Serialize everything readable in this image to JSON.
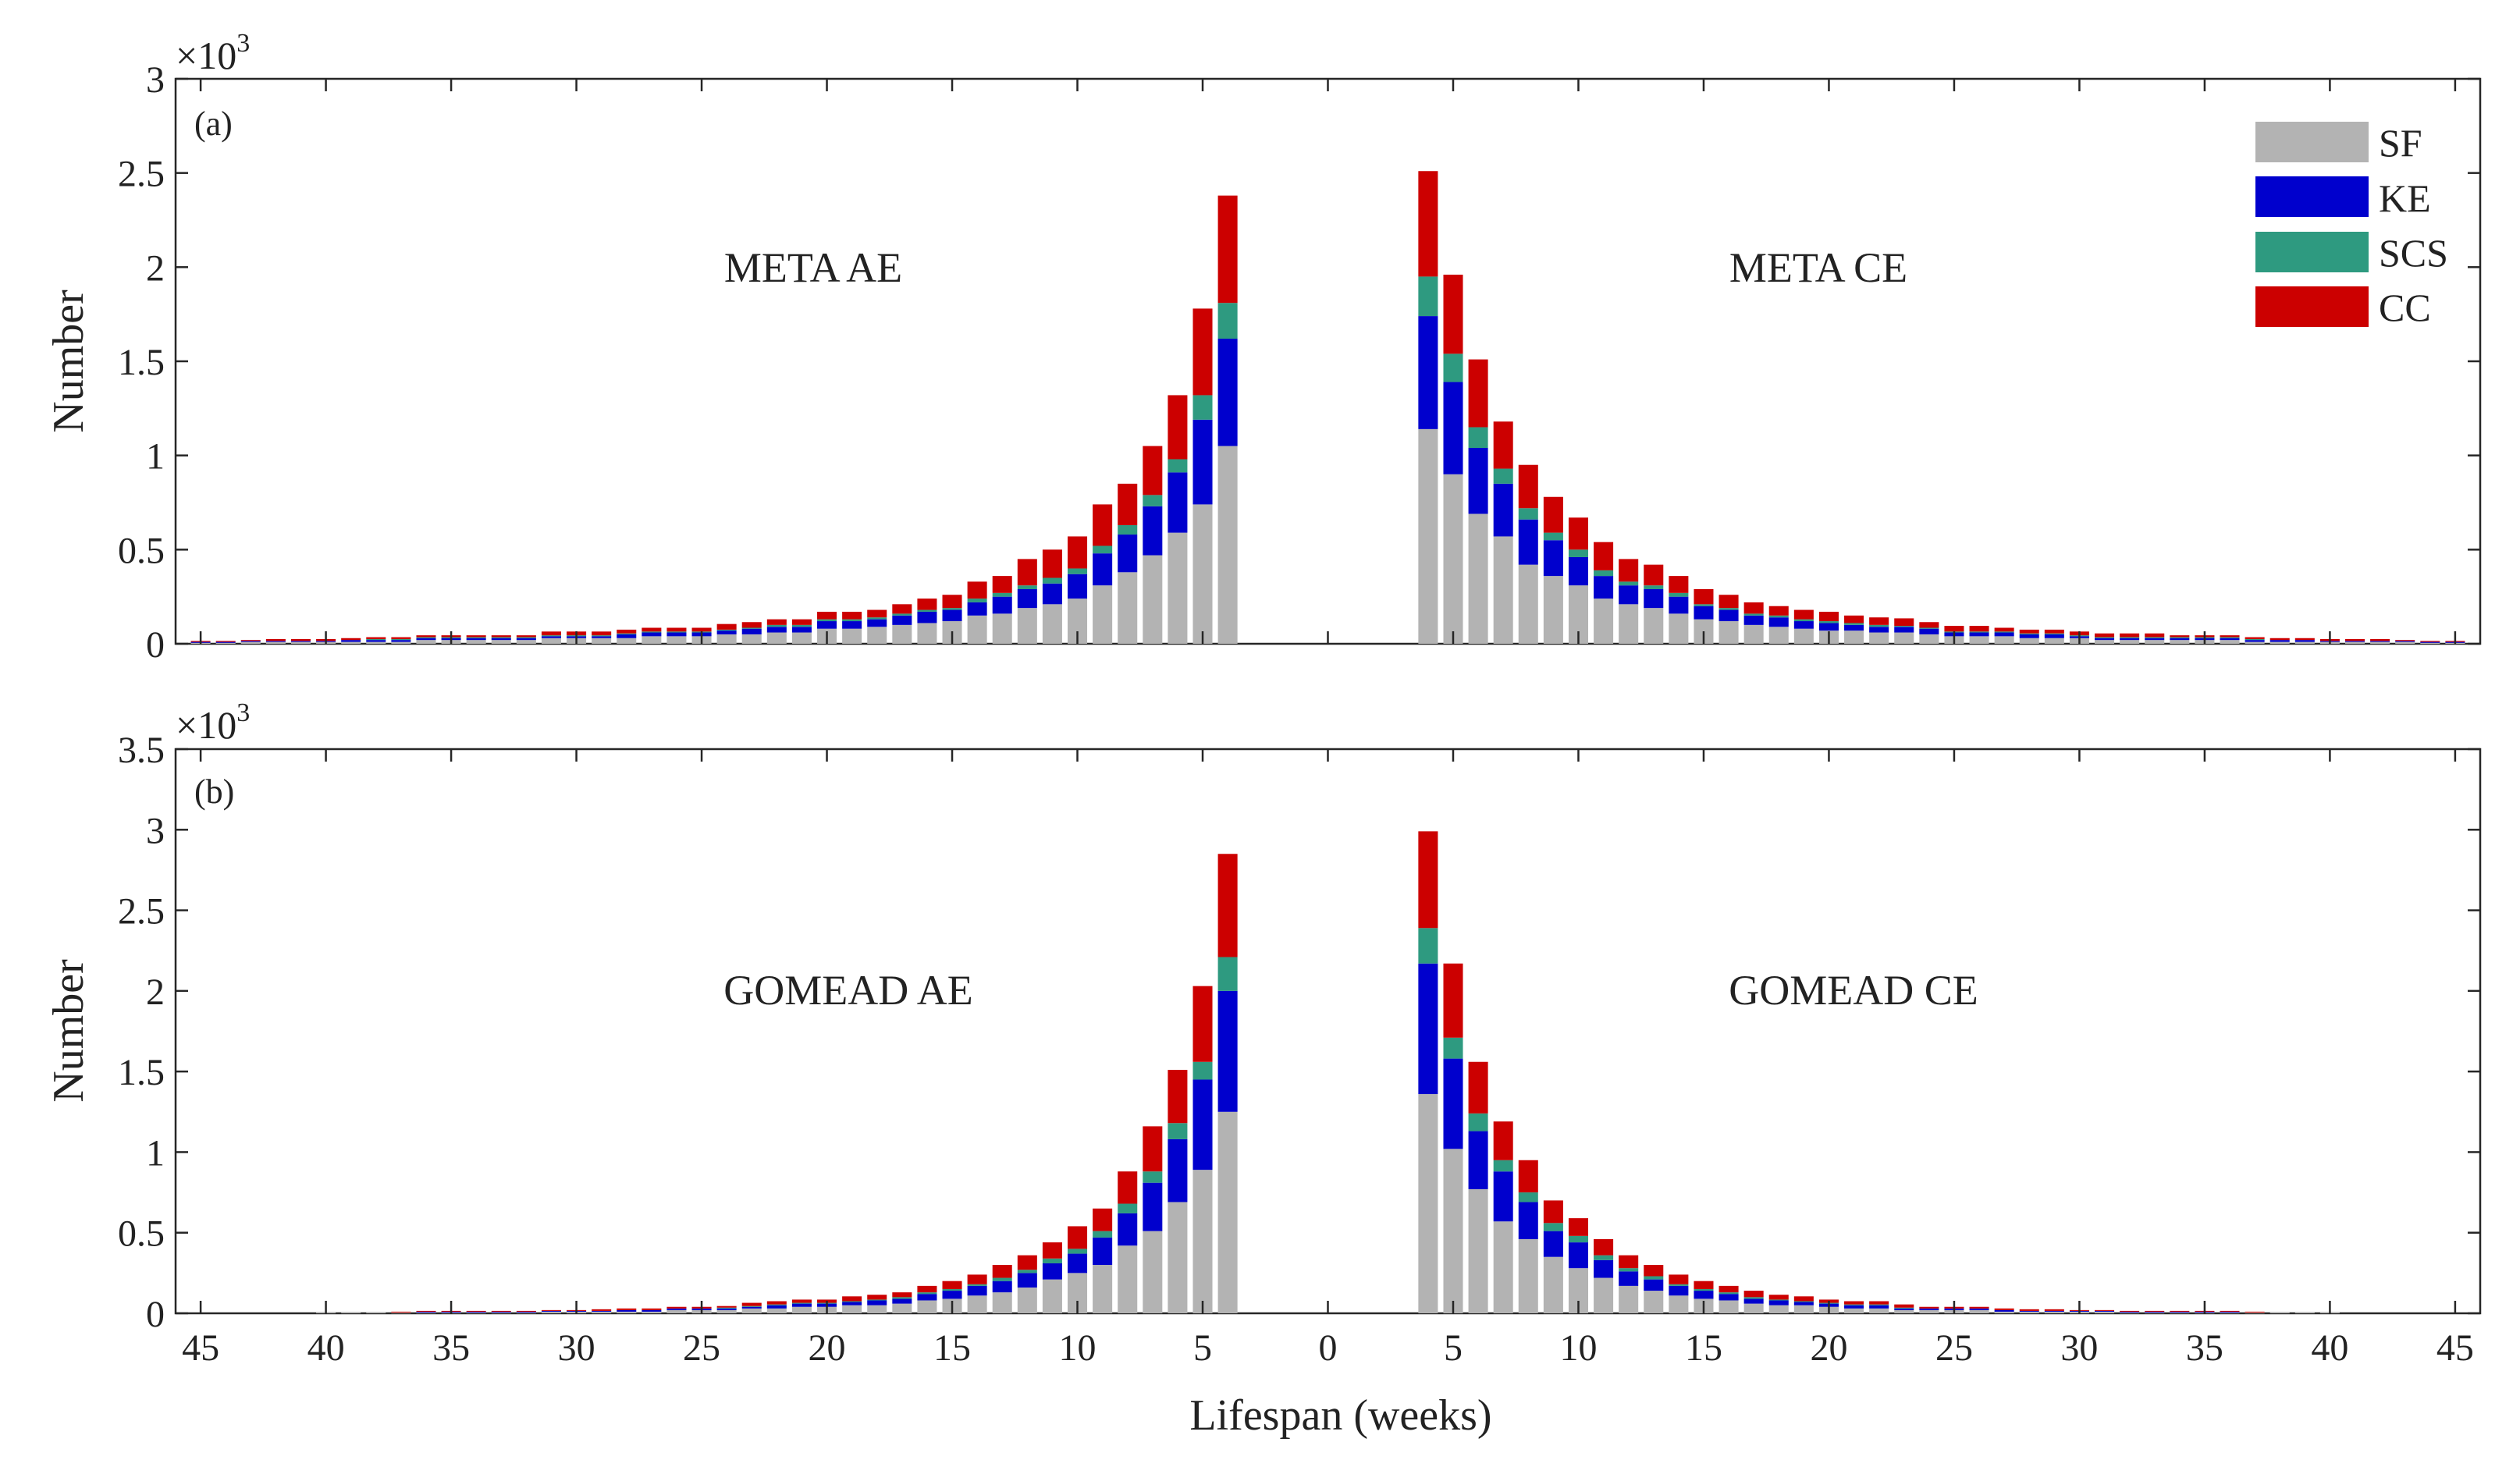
{
  "colors": {
    "SF": "#b3b3b3",
    "KE": "#0000cd",
    "SCS": "#2e9a80",
    "CC": "#cc0000",
    "axis": "#262626"
  },
  "chart_data": [
    {
      "type": "bar",
      "stacked": true,
      "panel_label": "(a)",
      "ylabel": "Number",
      "y_multiplier": "×10",
      "y_multiplier_exponent": "3",
      "ylim": [
        0,
        3
      ],
      "yticks": [
        0,
        0.5,
        1,
        1.5,
        2,
        2.5,
        3
      ],
      "ytick_labels": [
        "0",
        "0.5",
        "1",
        "1.5",
        "2",
        "2.5",
        "3"
      ],
      "xlim": [
        -46,
        46
      ],
      "xticks": [
        -45,
        -40,
        -35,
        -30,
        -25,
        -20,
        -15,
        -10,
        -5,
        0,
        5,
        10,
        15,
        20,
        25,
        30,
        35,
        40,
        45
      ],
      "xtick_labels": [],
      "ae_label": "META AE",
      "ce_label": "META CE",
      "legend": {
        "position": "top-right",
        "entries": [
          "SF",
          "KE",
          "SCS",
          "CC"
        ]
      },
      "series_names": [
        "SF",
        "KE",
        "SCS",
        "CC"
      ],
      "ae": {
        "weeks": [
          4,
          5,
          6,
          7,
          8,
          9,
          10,
          11,
          12,
          13,
          14,
          15,
          16,
          17,
          18,
          19,
          20,
          21,
          22,
          23,
          24,
          25,
          26,
          27,
          28,
          29,
          30,
          31,
          32,
          33,
          34,
          35,
          36,
          37,
          38,
          39,
          40,
          41,
          42,
          43,
          44,
          45
        ],
        "SF": [
          1.05,
          0.74,
          0.59,
          0.47,
          0.38,
          0.31,
          0.24,
          0.21,
          0.19,
          0.16,
          0.15,
          0.12,
          0.11,
          0.1,
          0.09,
          0.08,
          0.08,
          0.06,
          0.06,
          0.05,
          0.05,
          0.04,
          0.04,
          0.04,
          0.03,
          0.03,
          0.03,
          0.03,
          0.02,
          0.02,
          0.02,
          0.02,
          0.02,
          0.01,
          0.01,
          0.01,
          0.01,
          0.01,
          0.01,
          0.01,
          0.005,
          0.005
        ],
        "KE": [
          0.57,
          0.45,
          0.32,
          0.26,
          0.2,
          0.17,
          0.13,
          0.11,
          0.1,
          0.09,
          0.07,
          0.06,
          0.06,
          0.05,
          0.04,
          0.04,
          0.04,
          0.03,
          0.03,
          0.03,
          0.02,
          0.02,
          0.02,
          0.02,
          0.02,
          0.01,
          0.01,
          0.01,
          0.01,
          0.01,
          0.01,
          0.01,
          0.01,
          0.01,
          0.01,
          0.01,
          0.005,
          0.005,
          0.005,
          0.005,
          0.005,
          0.005
        ],
        "SCS": [
          0.19,
          0.13,
          0.07,
          0.06,
          0.05,
          0.04,
          0.03,
          0.03,
          0.02,
          0.02,
          0.02,
          0.01,
          0.01,
          0.01,
          0.01,
          0.01,
          0.01,
          0.01,
          0.01,
          0.005,
          0.005,
          0.005,
          0.005,
          0.005,
          0.005,
          0.005,
          0.005,
          0.005,
          0.005,
          0.005,
          0.005,
          0.005,
          0.005,
          0.005,
          0.005,
          0,
          0,
          0,
          0,
          0,
          0,
          0
        ],
        "CC": [
          0.57,
          0.46,
          0.34,
          0.26,
          0.22,
          0.22,
          0.17,
          0.15,
          0.14,
          0.09,
          0.09,
          0.07,
          0.06,
          0.05,
          0.04,
          0.04,
          0.04,
          0.03,
          0.03,
          0.03,
          0.03,
          0.02,
          0.02,
          0.02,
          0.02,
          0.02,
          0.02,
          0.02,
          0.01,
          0.01,
          0.01,
          0.01,
          0.01,
          0.01,
          0.01,
          0.01,
          0.01,
          0.01,
          0.01,
          0.005,
          0.005,
          0.005
        ]
      },
      "ce": {
        "weeks": [
          4,
          5,
          6,
          7,
          8,
          9,
          10,
          11,
          12,
          13,
          14,
          15,
          16,
          17,
          18,
          19,
          20,
          21,
          22,
          23,
          24,
          25,
          26,
          27,
          28,
          29,
          30,
          31,
          32,
          33,
          34,
          35,
          36,
          37,
          38,
          39,
          40,
          41,
          42,
          43,
          44,
          45
        ],
        "SF": [
          1.14,
          0.9,
          0.69,
          0.57,
          0.42,
          0.36,
          0.31,
          0.24,
          0.21,
          0.19,
          0.16,
          0.13,
          0.12,
          0.1,
          0.09,
          0.08,
          0.07,
          0.07,
          0.06,
          0.06,
          0.05,
          0.04,
          0.04,
          0.04,
          0.03,
          0.03,
          0.03,
          0.02,
          0.02,
          0.02,
          0.02,
          0.02,
          0.02,
          0.01,
          0.01,
          0.01,
          0.01,
          0.01,
          0.01,
          0.01,
          0.005,
          0.005
        ],
        "KE": [
          0.6,
          0.49,
          0.35,
          0.28,
          0.24,
          0.19,
          0.15,
          0.12,
          0.1,
          0.1,
          0.09,
          0.07,
          0.06,
          0.05,
          0.05,
          0.04,
          0.04,
          0.03,
          0.03,
          0.03,
          0.03,
          0.02,
          0.02,
          0.02,
          0.02,
          0.02,
          0.01,
          0.01,
          0.01,
          0.01,
          0.01,
          0.01,
          0.01,
          0.01,
          0.01,
          0.01,
          0.005,
          0.005,
          0.005,
          0.005,
          0.005,
          0.005
        ],
        "SCS": [
          0.21,
          0.15,
          0.11,
          0.08,
          0.06,
          0.04,
          0.04,
          0.03,
          0.02,
          0.02,
          0.02,
          0.01,
          0.01,
          0.01,
          0.01,
          0.01,
          0.01,
          0.01,
          0.01,
          0.005,
          0.005,
          0.005,
          0.005,
          0.005,
          0.005,
          0.005,
          0.005,
          0.005,
          0.005,
          0.005,
          0.005,
          0.005,
          0.005,
          0.005,
          0,
          0,
          0,
          0,
          0,
          0,
          0,
          0
        ],
        "CC": [
          0.56,
          0.42,
          0.36,
          0.25,
          0.23,
          0.19,
          0.17,
          0.15,
          0.12,
          0.11,
          0.09,
          0.08,
          0.07,
          0.06,
          0.05,
          0.05,
          0.05,
          0.04,
          0.04,
          0.04,
          0.03,
          0.03,
          0.03,
          0.02,
          0.02,
          0.02,
          0.02,
          0.02,
          0.02,
          0.02,
          0.01,
          0.01,
          0.01,
          0.01,
          0.01,
          0.01,
          0.01,
          0.01,
          0.01,
          0.005,
          0.005,
          0.005
        ]
      }
    },
    {
      "type": "bar",
      "stacked": true,
      "panel_label": "(b)",
      "ylabel": "Number",
      "y_multiplier": "×10",
      "y_multiplier_exponent": "3",
      "ylim": [
        0,
        3.5
      ],
      "yticks": [
        0,
        0.5,
        1,
        1.5,
        2,
        2.5,
        3,
        3.5
      ],
      "ytick_labels": [
        "0",
        "0.5",
        "1",
        "1.5",
        "2",
        "2.5",
        "3",
        "3.5"
      ],
      "xlim": [
        -46,
        46
      ],
      "xticks": [
        -45,
        -40,
        -35,
        -30,
        -25,
        -20,
        -15,
        -10,
        -5,
        0,
        5,
        10,
        15,
        20,
        25,
        30,
        35,
        40,
        45
      ],
      "xtick_labels": [
        "45",
        "40",
        "35",
        "30",
        "25",
        "20",
        "15",
        "10",
        "5",
        "0",
        "5",
        "10",
        "15",
        "20",
        "25",
        "30",
        "35",
        "40",
        "45"
      ],
      "xlabel": "Lifespan (weeks)",
      "ae_label": "GOMEAD AE",
      "ce_label": "GOMEAD CE",
      "series_names": [
        "SF",
        "KE",
        "SCS",
        "CC"
      ],
      "ae": {
        "weeks": [
          4,
          5,
          6,
          7,
          8,
          9,
          10,
          11,
          12,
          13,
          14,
          15,
          16,
          17,
          18,
          19,
          20,
          21,
          22,
          23,
          24,
          25,
          26,
          27,
          28,
          29,
          30,
          31,
          32,
          33,
          34,
          35,
          36,
          37,
          38,
          39,
          40
        ],
        "SF": [
          1.25,
          0.89,
          0.69,
          0.51,
          0.42,
          0.3,
          0.25,
          0.21,
          0.16,
          0.13,
          0.11,
          0.09,
          0.08,
          0.06,
          0.05,
          0.05,
          0.04,
          0.04,
          0.03,
          0.03,
          0.02,
          0.02,
          0.02,
          0.01,
          0.01,
          0.01,
          0.01,
          0.01,
          0.005,
          0.005,
          0.005,
          0.005,
          0.005,
          0.005,
          0.005,
          0.005,
          0.005
        ],
        "KE": [
          0.75,
          0.56,
          0.39,
          0.3,
          0.2,
          0.17,
          0.12,
          0.1,
          0.09,
          0.07,
          0.06,
          0.05,
          0.04,
          0.03,
          0.03,
          0.02,
          0.02,
          0.02,
          0.02,
          0.01,
          0.01,
          0.01,
          0.01,
          0.01,
          0.01,
          0.005,
          0.005,
          0.005,
          0.005,
          0.005,
          0.005,
          0.005,
          0.005,
          0,
          0,
          0,
          0
        ],
        "SCS": [
          0.21,
          0.11,
          0.1,
          0.07,
          0.06,
          0.04,
          0.03,
          0.03,
          0.02,
          0.02,
          0.01,
          0.01,
          0.01,
          0.01,
          0.005,
          0.005,
          0.005,
          0.005,
          0.005,
          0.005,
          0.005,
          0,
          0,
          0,
          0,
          0,
          0,
          0,
          0,
          0,
          0,
          0,
          0,
          0,
          0,
          0,
          0
        ],
        "CC": [
          0.64,
          0.47,
          0.33,
          0.28,
          0.2,
          0.14,
          0.14,
          0.1,
          0.09,
          0.08,
          0.06,
          0.05,
          0.04,
          0.03,
          0.03,
          0.03,
          0.02,
          0.02,
          0.02,
          0.02,
          0.01,
          0.01,
          0.01,
          0.01,
          0.01,
          0.01,
          0.005,
          0.005,
          0.005,
          0.005,
          0.005,
          0.005,
          0.005,
          0.005,
          0,
          0,
          0
        ]
      },
      "ce": {
        "weeks": [
          4,
          5,
          6,
          7,
          8,
          9,
          10,
          11,
          12,
          13,
          14,
          15,
          16,
          17,
          18,
          19,
          20,
          21,
          22,
          23,
          24,
          25,
          26,
          27,
          28,
          29,
          30,
          31,
          32,
          33,
          34,
          35,
          36,
          37,
          38,
          39,
          40
        ],
        "SF": [
          1.36,
          1.02,
          0.77,
          0.57,
          0.46,
          0.35,
          0.28,
          0.22,
          0.17,
          0.14,
          0.11,
          0.09,
          0.08,
          0.06,
          0.05,
          0.05,
          0.04,
          0.03,
          0.03,
          0.02,
          0.02,
          0.02,
          0.02,
          0.01,
          0.01,
          0.01,
          0.01,
          0.01,
          0.005,
          0.005,
          0.005,
          0.005,
          0.005,
          0.005,
          0.005,
          0.005,
          0.005
        ],
        "KE": [
          0.81,
          0.56,
          0.36,
          0.31,
          0.23,
          0.16,
          0.16,
          0.11,
          0.09,
          0.07,
          0.06,
          0.05,
          0.04,
          0.03,
          0.03,
          0.02,
          0.02,
          0.02,
          0.02,
          0.01,
          0.01,
          0.01,
          0.01,
          0.01,
          0.005,
          0.005,
          0.005,
          0.005,
          0.005,
          0.005,
          0.005,
          0.005,
          0.005,
          0,
          0,
          0,
          0
        ],
        "SCS": [
          0.22,
          0.13,
          0.11,
          0.07,
          0.06,
          0.05,
          0.04,
          0.03,
          0.02,
          0.02,
          0.01,
          0.01,
          0.01,
          0.01,
          0.005,
          0.005,
          0.005,
          0.005,
          0.005,
          0.005,
          0,
          0,
          0,
          0,
          0,
          0,
          0,
          0,
          0,
          0,
          0,
          0,
          0,
          0,
          0,
          0,
          0
        ],
        "CC": [
          0.6,
          0.46,
          0.32,
          0.24,
          0.2,
          0.14,
          0.11,
          0.1,
          0.08,
          0.07,
          0.06,
          0.05,
          0.04,
          0.04,
          0.03,
          0.03,
          0.02,
          0.02,
          0.02,
          0.02,
          0.01,
          0.01,
          0.01,
          0.01,
          0.01,
          0.01,
          0.005,
          0.005,
          0.005,
          0.005,
          0.005,
          0.005,
          0.005,
          0.005,
          0,
          0,
          0
        ]
      }
    }
  ]
}
